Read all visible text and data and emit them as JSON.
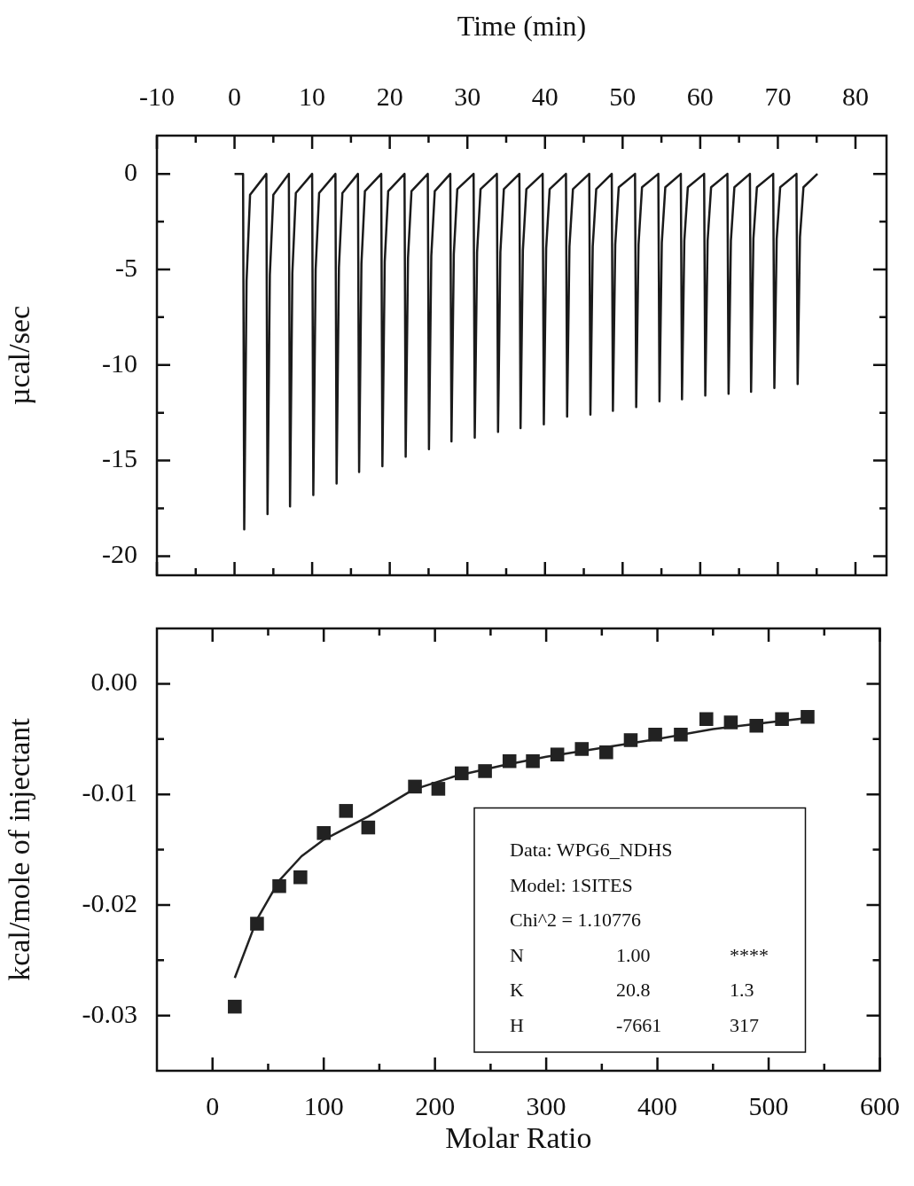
{
  "chart_data": [
    {
      "type": "line",
      "xlabel": "Time (min)",
      "ylabel": "µcal/sec",
      "xlim": [
        -10,
        84
      ],
      "ylim": [
        -21,
        2
      ],
      "xticks": [
        -10,
        {
          "value": -5,
          "label": null
        },
        0,
        {
          "value": 5,
          "label": null
        },
        10,
        {
          "value": 15,
          "label": null
        },
        20,
        {
          "value": 25,
          "label": null
        },
        30,
        {
          "value": 35,
          "label": null
        },
        40,
        {
          "value": 45,
          "label": null
        },
        50,
        {
          "value": 55,
          "label": null
        },
        60,
        {
          "value": 65,
          "label": null
        },
        70,
        {
          "value": 75,
          "label": null
        },
        80
      ],
      "yticks": [
        0,
        {
          "value": -2.5,
          "label": null
        },
        -5,
        {
          "value": -7.5,
          "label": null
        },
        -10,
        {
          "value": -12.5,
          "label": null
        },
        -15,
        {
          "value": -17.5,
          "label": null
        },
        -20
      ],
      "series": [
        {
          "color": "#1a1a1a",
          "x": [
            0,
            1.1,
            1.25,
            1.55,
            2.0,
            4.1,
            4.25,
            4.55,
            5.0,
            7.0,
            7.15,
            7.45,
            7.9,
            10.0,
            10.15,
            10.45,
            10.9,
            13.0,
            13.15,
            13.45,
            13.9,
            15.9,
            16.05,
            16.35,
            16.8,
            18.9,
            19.05,
            19.35,
            19.8,
            21.9,
            22.05,
            22.35,
            22.8,
            24.9,
            25.05,
            25.35,
            25.8,
            27.8,
            27.95,
            28.25,
            28.7,
            30.8,
            30.95,
            31.25,
            31.7,
            33.8,
            33.95,
            34.25,
            34.7,
            36.7,
            36.85,
            37.15,
            37.6,
            39.7,
            39.85,
            40.15,
            40.6,
            42.7,
            42.85,
            43.15,
            43.6,
            45.7,
            45.85,
            46.15,
            46.6,
            48.6,
            48.75,
            49.05,
            49.5,
            51.6,
            51.75,
            52.05,
            52.5,
            54.6,
            54.75,
            55.05,
            55.5,
            57.5,
            57.65,
            57.95,
            58.4,
            60.5,
            60.65,
            60.95,
            61.4,
            63.5,
            63.65,
            63.95,
            64.4,
            66.4,
            66.55,
            66.85,
            67.3,
            69.4,
            69.55,
            69.85,
            70.3,
            72.4,
            72.55,
            72.85,
            73.3,
            75.1
          ],
          "values": [
            0,
            0,
            -18.6,
            -5.6,
            -1.1,
            0,
            -17.8,
            -5.3,
            -1.1,
            0,
            -17.4,
            -5.2,
            -1.0,
            0,
            -16.8,
            -5.0,
            -1.0,
            0,
            -16.2,
            -4.9,
            -1.0,
            0,
            -15.6,
            -4.7,
            -0.9,
            0,
            -15.3,
            -4.6,
            -0.9,
            0,
            -14.8,
            -4.4,
            -0.9,
            0,
            -14.4,
            -4.3,
            -0.9,
            0,
            -14.0,
            -4.2,
            -0.8,
            0,
            -13.8,
            -4.1,
            -0.8,
            0,
            -13.5,
            -4.1,
            -0.8,
            0,
            -13.3,
            -4.0,
            -0.8,
            0,
            -13.1,
            -3.9,
            -0.8,
            0,
            -12.7,
            -3.8,
            -0.8,
            0,
            -12.6,
            -3.8,
            -0.8,
            0,
            -12.4,
            -3.7,
            -0.7,
            0,
            -12.2,
            -3.7,
            -0.7,
            0,
            -11.9,
            -3.6,
            -0.7,
            0,
            -11.8,
            -3.5,
            -0.7,
            0,
            -11.6,
            -3.5,
            -0.7,
            0,
            -11.5,
            -3.5,
            -0.7,
            0,
            -11.4,
            -3.4,
            -0.7,
            0,
            -11.2,
            -3.4,
            -0.7,
            0,
            -11.0,
            -3.3,
            -0.7,
            0
          ]
        }
      ]
    },
    {
      "type": "scatter",
      "xlabel": "Molar Ratio",
      "ylabel": "kcal/mole of injectant",
      "xlim": [
        -50,
        600
      ],
      "ylim": [
        -0.035,
        0.005
      ],
      "xticks": [
        0,
        {
          "value": 50,
          "label": null
        },
        100,
        {
          "value": 150,
          "label": null
        },
        200,
        {
          "value": 250,
          "label": null
        },
        300,
        {
          "value": 350,
          "label": null
        },
        400,
        {
          "value": 450,
          "label": null
        },
        500,
        {
          "value": 550,
          "label": null
        },
        600
      ],
      "yticks": [
        {
          "value": 0,
          "label": "0.00"
        },
        {
          "value": -0.005,
          "label": null
        },
        {
          "value": -0.01,
          "label": "-0.01"
        },
        {
          "value": -0.015,
          "label": null
        },
        {
          "value": -0.02,
          "label": "-0.02"
        },
        {
          "value": -0.025,
          "label": null
        },
        {
          "value": -0.03,
          "label": "-0.03"
        }
      ],
      "annotations": [
        "Data: WPG6_NDHS",
        "Model: 1SITES",
        "Chi^2 = 1.10776",
        "N",
        "1.00",
        "****",
        "K",
        "20.8",
        "1.3",
        "H",
        "-7661",
        "317"
      ],
      "series": [
        {
          "color": "#222222",
          "marker": "square",
          "x": [
            20,
            40,
            60,
            79,
            100,
            120,
            140,
            182,
            203,
            224,
            245,
            267,
            288,
            310,
            332,
            354,
            376,
            398,
            421,
            444,
            466,
            489,
            512,
            535
          ],
          "values": [
            -0.0292,
            -0.0217,
            -0.0183,
            -0.0175,
            -0.0135,
            -0.0115,
            -0.013,
            -0.0093,
            -0.0095,
            -0.0081,
            -0.0079,
            -0.007,
            -0.007,
            -0.0064,
            -0.0059,
            -0.0062,
            -0.0051,
            -0.0046,
            -0.0046,
            -0.0032,
            -0.0035,
            -0.0038,
            -0.0032,
            -0.003
          ]
        },
        {
          "type": "line",
          "color": "#222222",
          "x": [
            20,
            40,
            60,
            80,
            100,
            140,
            180,
            220,
            260,
            300,
            350,
            400,
            450,
            500,
            535
          ],
          "values": [
            -0.0266,
            -0.0213,
            -0.0178,
            -0.0156,
            -0.0141,
            -0.012,
            -0.0096,
            -0.0083,
            -0.0074,
            -0.0066,
            -0.0058,
            -0.005,
            -0.0041,
            -0.0035,
            -0.0031
          ]
        }
      ]
    }
  ]
}
